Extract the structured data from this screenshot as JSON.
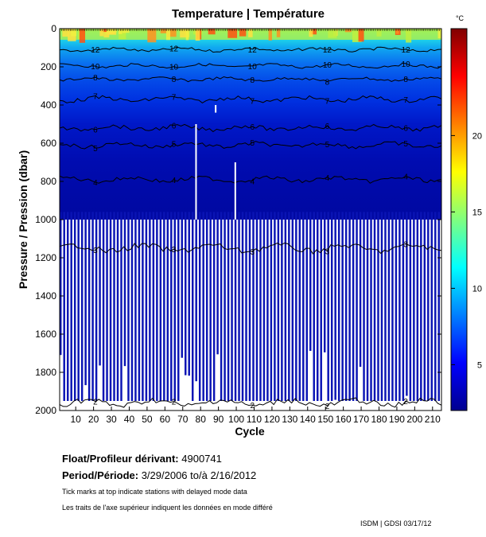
{
  "chart_data": {
    "type": "heatmap",
    "title": "Temperature | Température",
    "xlabel": "Cycle",
    "ylabel": "Pressure / Pression (dbar)",
    "x_ticks": [
      10,
      20,
      30,
      40,
      50,
      60,
      70,
      80,
      90,
      100,
      110,
      120,
      130,
      140,
      150,
      160,
      170,
      180,
      190,
      200,
      210
    ],
    "y_ticks": [
      0,
      200,
      400,
      600,
      800,
      1000,
      1200,
      1400,
      1600,
      1800,
      2000
    ],
    "xlim": [
      1,
      215
    ],
    "ylim": [
      2000,
      0
    ],
    "colorbar": {
      "unit": "°C",
      "ticks": [
        5,
        10,
        15,
        20
      ],
      "range": [
        2,
        27
      ]
    },
    "isotherms": [
      {
        "value": 12,
        "depth": 110
      },
      {
        "value": 10,
        "depth": 195
      },
      {
        "value": 8,
        "depth": 265
      },
      {
        "value": 7,
        "depth": 370
      },
      {
        "value": 6,
        "depth": 520
      },
      {
        "value": 5,
        "depth": 610
      },
      {
        "value": 4,
        "depth": 790
      },
      {
        "value": 3,
        "depth": 1150
      },
      {
        "value": 2,
        "depth": 1960
      }
    ]
  },
  "info": {
    "float_label": "Float/Profileur dérivant:",
    "float_id": "4900741",
    "period_label": "Period/Période:",
    "period_value": "3/29/2006  to/à  2/16/2012",
    "note_en": "Tick marks at top indicate stations with delayed mode data",
    "note_fr": "Les traits de l'axe supérieur indiquent les données en mode différé",
    "credit": "ISDM | GDSI  03/17/12"
  },
  "colors": {
    "jet_dark": "#00008f",
    "jet_blue": "#0000ff",
    "jet_cyan": "#00ffff",
    "jet_yellow": "#ffff00",
    "jet_red": "#ff0000",
    "jet_darkred": "#800000"
  }
}
